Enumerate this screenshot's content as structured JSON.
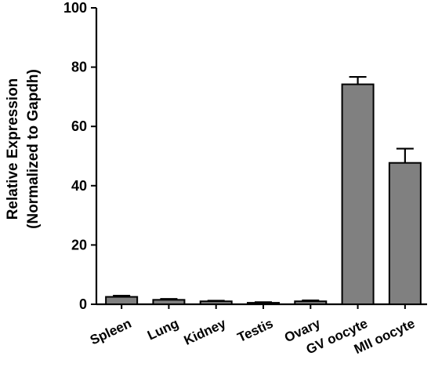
{
  "chart_data": {
    "type": "bar",
    "title": "",
    "xlabel": "",
    "ylabel_lines": [
      "Relative Expression",
      "(Normalized to Gapdh)"
    ],
    "categories": [
      "Spleen",
      "Lung",
      "Kidney",
      "Testis",
      "Ovary",
      "GV oocyte",
      "MII oocyte"
    ],
    "values": [
      2.5,
      1.5,
      1.0,
      0.5,
      1.0,
      74.2,
      47.7
    ],
    "errors": [
      0.4,
      0.3,
      0.2,
      0.2,
      0.3,
      2.5,
      4.8
    ],
    "ylim": [
      0,
      100
    ],
    "yticks": [
      0,
      20,
      40,
      60,
      80,
      100
    ],
    "bar_color": "#808080",
    "grid": false,
    "legend": "none"
  }
}
